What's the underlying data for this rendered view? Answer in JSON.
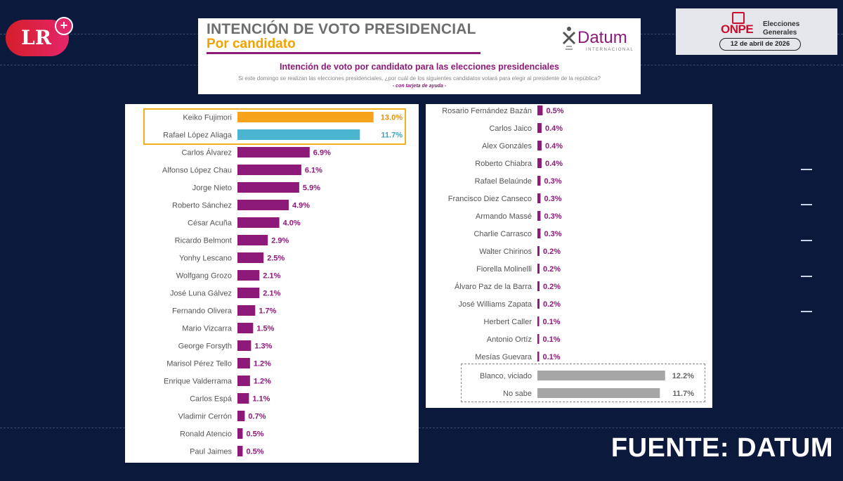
{
  "brand": {
    "logo_text": "LR",
    "logo_plus": "+"
  },
  "header": {
    "title": "INTENCIÓN DE VOTO PRESIDENCIAL",
    "subtitle": "Por candidato",
    "pollster": "Datum",
    "pollster_tag": "INTERNACIONAL",
    "chart_title": "Intención de voto por candidato para las elecciones presidenciales",
    "question": "Si este domingo se realizan las elecciones presidenciales, ¿por cuál de los siguientes candidatos votará para elegir al presidente de la república?",
    "note": "- con tarjeta de ayuda -"
  },
  "onpe": {
    "logo": "ONPE",
    "line1": "Elecciones",
    "line2": "Generales",
    "date": "12 de abril de 2026"
  },
  "source": "FUENTE: DATUM",
  "colors": {
    "primary": "#8d1a78",
    "first": "#f7a21b",
    "second": "#4bb5cf",
    "other": "#a6a6a6",
    "highlight": "#f2b01f"
  },
  "chart_data": [
    {
      "type": "bar",
      "orientation": "horizontal",
      "title": "Intención de voto por candidato para las elecciones presidenciales",
      "unit": "%",
      "categories": [
        "Keiko Fujimori",
        "Rafael López Aliaga",
        "Carlos Álvarez",
        "Alfonso López Chau",
        "Jorge Nieto",
        "Roberto Sánchez",
        "César Acuña",
        "Ricardo Belmont",
        "Yonhy Lescano",
        "Wolfgang Grozo",
        "José Luna Gálvez",
        "Fernando Olivera",
        "Mario Vizcarra",
        "George Forsyth",
        "Marisol Pérez Tello",
        "Enrique Valderrama",
        "Carlos Espá",
        "Vladimir Cerrón",
        "Ronald Atencio",
        "Paul Jaimes"
      ],
      "values": [
        13.0,
        11.7,
        6.9,
        6.1,
        5.9,
        4.9,
        4.0,
        2.9,
        2.5,
        2.1,
        2.1,
        1.7,
        1.5,
        1.3,
        1.2,
        1.2,
        1.1,
        0.7,
        0.5,
        0.5
      ],
      "labels": [
        "13.0%",
        "11.7%",
        "6.9%",
        "6.1%",
        "5.9%",
        "4.9%",
        "4.0%",
        "2.9%",
        "2.5%",
        "2.1%",
        "2.1%",
        "1.7%",
        "1.5%",
        "1.3%",
        "1.2%",
        "1.2%",
        "1.1%",
        "0.7%",
        "0.5%",
        "0.5%"
      ],
      "colors": [
        "#f7a21b",
        "#4bb5cf"
      ],
      "highlighted": [
        "Keiko Fujimori",
        "Rafael López Aliaga"
      ]
    },
    {
      "type": "bar",
      "orientation": "horizontal",
      "unit": "%",
      "categories": [
        "Rosario Fernández Bazán",
        "Carlos Jaico",
        "Alex Gonzáles",
        "Roberto Chiabra",
        "Rafael Belaúnde",
        "Francisco Diez Canseco",
        "Armando Massé",
        "Charlie Carrasco",
        "Walter Chirinos",
        "Fiorella Molinelli",
        "Álvaro Paz de la Barra",
        "José Williams Zapata",
        "Herbert Caller",
        "Antonio Ortíz",
        "Mesías Guevara",
        "Blanco, viciado",
        "No sabe"
      ],
      "values": [
        0.5,
        0.4,
        0.4,
        0.4,
        0.3,
        0.3,
        0.3,
        0.3,
        0.2,
        0.2,
        0.2,
        0.2,
        0.1,
        0.1,
        0.1,
        12.2,
        11.7
      ],
      "labels": [
        "0.5%",
        "0.4%",
        "0.4%",
        "0.4%",
        "0.3%",
        "0.3%",
        "0.3%",
        "0.3%",
        "0.2%",
        "0.2%",
        "0.2%",
        "0.2%",
        "0.1%",
        "0.1%",
        "0.1%",
        "12.2%",
        "11.7%"
      ],
      "grouped_boxed": [
        "Blanco, viciado",
        "No sabe"
      ]
    }
  ]
}
